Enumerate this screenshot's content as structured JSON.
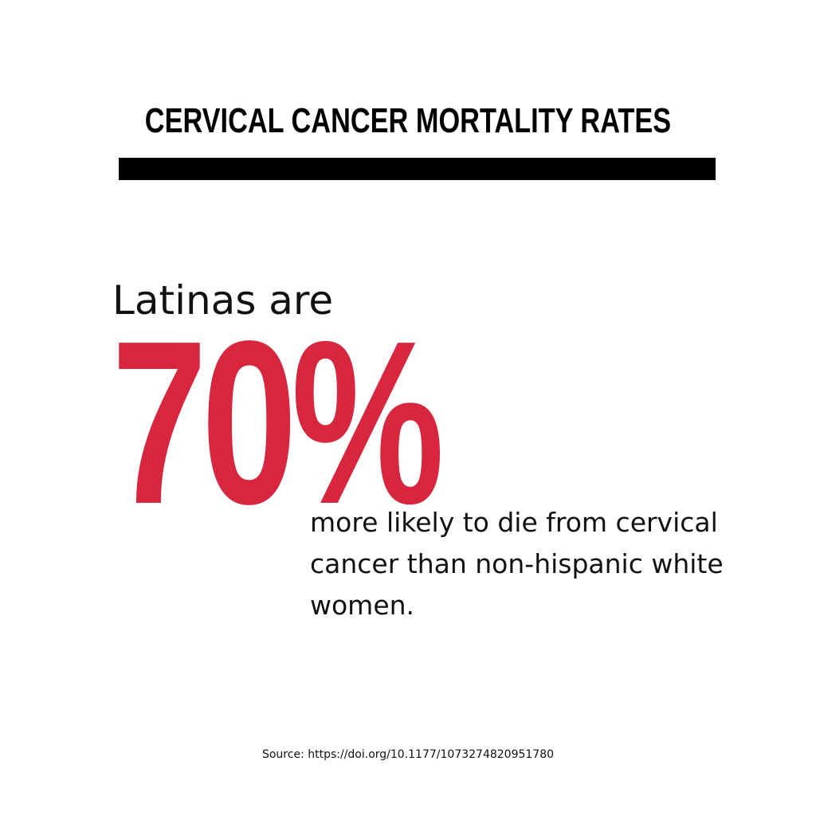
{
  "title": "CERVICAL CANCER MORTALITY RATES",
  "lead": "Latinas are",
  "stat": "70%",
  "detail": "more likely to die from cervical cancer than non-hispanic white women.",
  "source": "Source: https://doi.org/10.1177/1073274820951780",
  "colors": {
    "accent": "#d7263d",
    "text": "#111111",
    "rule": "#000000",
    "background": "#ffffff"
  }
}
